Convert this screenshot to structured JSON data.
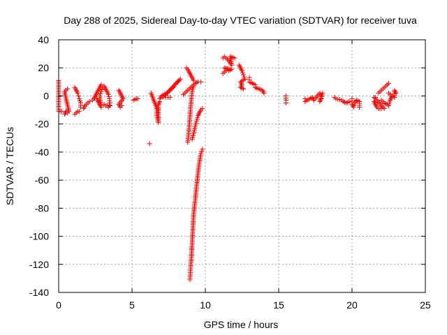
{
  "chart_data": {
    "type": "scatter",
    "title": "Day 288 of 2025, Sidereal Day-to-day VTEC variation (SDTVAR) for receiver tuva",
    "xlabel": "GPS time / hours",
    "ylabel": "SDTVAR / TECUs",
    "xlim": [
      0,
      25
    ],
    "ylim": [
      -140,
      40
    ],
    "xticks": [
      "0",
      "5",
      "10",
      "15",
      "20",
      "25"
    ],
    "yticks": [
      "40",
      "20",
      "0",
      "-20",
      "-40",
      "-60",
      "-80",
      "-100",
      "-120",
      "-140"
    ],
    "grid": true,
    "marker": "+",
    "series": [
      {
        "name": "SDTVAR",
        "color": "#ff0000",
        "segments": [
          [
            [
              0.0,
              11
            ],
            [
              0.0,
              3
            ],
            [
              0.0,
              -11
            ],
            [
              0.1,
              -11
            ],
            [
              0.2,
              -11
            ]
          ],
          [
            [
              0.4,
              -13
            ],
            [
              0.5,
              -11
            ],
            [
              0.6,
              -12
            ],
            [
              0.7,
              -11
            ],
            [
              0.4,
              3
            ],
            [
              0.5,
              4
            ],
            [
              0.6,
              5
            ]
          ],
          [
            [
              1.1,
              6
            ],
            [
              1.2,
              4
            ],
            [
              1.3,
              2
            ],
            [
              1.35,
              0
            ],
            [
              1.4,
              -2
            ],
            [
              1.5,
              -5
            ],
            [
              1.5,
              -8
            ]
          ],
          [
            [
              1.1,
              -13
            ],
            [
              1.2,
              -12
            ],
            [
              1.3,
              -11
            ],
            [
              1.4,
              -11
            ]
          ],
          [
            [
              1.7,
              -9
            ],
            [
              1.8,
              -7
            ],
            [
              1.9,
              -6
            ],
            [
              2.0,
              -5
            ],
            [
              2.1,
              -4
            ]
          ],
          [
            [
              2.3,
              -3
            ],
            [
              2.4,
              -2
            ],
            [
              2.5,
              0
            ],
            [
              2.6,
              2
            ],
            [
              2.7,
              4
            ],
            [
              2.8,
              6
            ],
            [
              2.9,
              8
            ]
          ],
          [
            [
              2.6,
              -2
            ],
            [
              2.7,
              -4
            ],
            [
              2.8,
              -6
            ],
            [
              2.9,
              -8
            ],
            [
              2.8,
              0
            ],
            [
              2.9,
              3
            ],
            [
              3.0,
              6
            ]
          ],
          [
            [
              3.1,
              7
            ],
            [
              3.2,
              5
            ],
            [
              3.3,
              3
            ],
            [
              3.4,
              1
            ],
            [
              3.45,
              -2
            ],
            [
              3.5,
              -5
            ],
            [
              3.4,
              -8
            ]
          ],
          [
            [
              3.1,
              -6
            ],
            [
              3.2,
              -7
            ],
            [
              3.3,
              -7
            ],
            [
              3.5,
              -7
            ]
          ],
          [
            [
              4.1,
              4
            ],
            [
              4.2,
              2
            ],
            [
              4.3,
              0
            ],
            [
              4.4,
              -2
            ],
            [
              4.1,
              -6
            ],
            [
              4.2,
              -8
            ],
            [
              4.3,
              -7
            ]
          ],
          [
            [
              5.1,
              -3
            ],
            [
              5.3,
              -2
            ],
            [
              5.4,
              -2
            ]
          ],
          [
            [
              6.2,
              -34
            ],
            [
              6.3,
              2
            ],
            [
              6.7,
              -9
            ],
            [
              6.7,
              -14
            ],
            [
              6.8,
              -19
            ],
            [
              6.8,
              -6
            ],
            [
              6.9,
              -4
            ]
          ],
          [
            [
              6.9,
              -2
            ],
            [
              7.0,
              0
            ],
            [
              7.2,
              1
            ],
            [
              7.4,
              2
            ],
            [
              7.6,
              4
            ],
            [
              7.8,
              6
            ],
            [
              8.0,
              9
            ],
            [
              8.2,
              11
            ],
            [
              8.3,
              12
            ],
            [
              7.1,
              -1
            ],
            [
              7.3,
              -1
            ],
            [
              7.6,
              -1
            ]
          ],
          [
            [
              8.5,
              1
            ],
            [
              8.7,
              3
            ],
            [
              8.9,
              5
            ],
            [
              9.1,
              7
            ],
            [
              9.3,
              9
            ],
            [
              9.5,
              10
            ],
            [
              9.7,
              10
            ]
          ],
          [
            [
              8.7,
              20
            ],
            [
              8.8,
              19
            ],
            [
              8.9,
              17
            ],
            [
              9.0,
              15
            ],
            [
              9.1,
              13
            ],
            [
              9.2,
              11
            ]
          ],
          [
            [
              8.8,
              -33
            ],
            [
              8.85,
              -28
            ],
            [
              8.9,
              -22
            ],
            [
              8.95,
              -15
            ],
            [
              9.0,
              -8
            ],
            [
              9.05,
              -2
            ],
            [
              9.1,
              3
            ],
            [
              9.2,
              7
            ]
          ],
          [
            [
              9.1,
              -31
            ],
            [
              9.2,
              -27
            ],
            [
              9.3,
              -22
            ],
            [
              9.4,
              -18
            ],
            [
              9.5,
              -14
            ],
            [
              9.6,
              -12
            ],
            [
              9.7,
              -10
            ],
            [
              9.8,
              -9
            ]
          ],
          [
            [
              8.95,
              -131
            ],
            [
              8.97,
              -127
            ],
            [
              9.0,
              -122
            ],
            [
              9.05,
              -115
            ],
            [
              9.1,
              -105
            ],
            [
              9.15,
              -95
            ],
            [
              9.2,
              -85
            ],
            [
              9.3,
              -75
            ],
            [
              9.4,
              -65
            ],
            [
              9.5,
              -55
            ],
            [
              9.6,
              -47
            ],
            [
              9.7,
              -41
            ],
            [
              9.8,
              -38
            ]
          ],
          [
            [
              11.2,
              27
            ],
            [
              11.3,
              28
            ],
            [
              11.4,
              27
            ],
            [
              11.6,
              25
            ],
            [
              11.8,
              22
            ],
            [
              11.7,
              28
            ],
            [
              12.0,
              27
            ]
          ],
          [
            [
              11.2,
              16
            ],
            [
              11.3,
              17
            ],
            [
              11.4,
              18
            ],
            [
              11.6,
              18
            ],
            [
              11.8,
              19
            ],
            [
              11.3,
              20
            ],
            [
              11.5,
              19
            ]
          ],
          [
            [
              12.3,
              22
            ],
            [
              12.4,
              20
            ],
            [
              12.5,
              18
            ],
            [
              12.6,
              15
            ],
            [
              12.7,
              12
            ],
            [
              12.4,
              10
            ],
            [
              12.5,
              8
            ],
            [
              12.4,
              6
            ],
            [
              12.6,
              5
            ]
          ],
          [
            [
              13.0,
              13
            ],
            [
              13.0,
              10
            ],
            [
              13.4,
              8
            ],
            [
              13.4,
              6
            ],
            [
              13.9,
              4
            ],
            [
              14.0,
              2
            ]
          ],
          [
            [
              15.5,
              0
            ],
            [
              15.5,
              -3
            ],
            [
              15.5,
              -5
            ]
          ],
          [
            [
              16.8,
              -2
            ],
            [
              16.8,
              -4
            ],
            [
              17.3,
              -1
            ],
            [
              17.4,
              -3
            ],
            [
              17.8,
              2
            ],
            [
              17.9,
              0
            ],
            [
              17.9,
              -2
            ],
            [
              17.8,
              -4
            ],
            [
              18.0,
              2
            ]
          ],
          [
            [
              18.8,
              -1
            ],
            [
              18.9,
              -2
            ],
            [
              19.3,
              -3
            ],
            [
              19.4,
              -4
            ],
            [
              19.6,
              -5
            ],
            [
              19.8,
              -4
            ]
          ],
          [
            [
              20.0,
              -2
            ],
            [
              20.0,
              -6
            ],
            [
              20.1,
              -8
            ],
            [
              20.2,
              -5
            ],
            [
              20.3,
              -3
            ],
            [
              20.5,
              -4
            ],
            [
              20.5,
              -8
            ]
          ],
          [
            [
              21.5,
              -4
            ],
            [
              21.6,
              -6
            ],
            [
              21.7,
              -8
            ],
            [
              21.8,
              -9
            ],
            [
              21.9,
              -9
            ],
            [
              22.0,
              -9
            ],
            [
              22.2,
              -9
            ],
            [
              21.5,
              -1
            ],
            [
              21.6,
              -1
            ]
          ],
          [
            [
              21.8,
              2
            ],
            [
              21.9,
              3
            ],
            [
              22.0,
              4
            ],
            [
              22.1,
              5
            ],
            [
              22.2,
              6
            ],
            [
              22.3,
              7
            ],
            [
              22.4,
              8
            ],
            [
              22.5,
              9
            ]
          ],
          [
            [
              22.0,
              -3
            ],
            [
              22.2,
              -5
            ],
            [
              22.4,
              -6
            ],
            [
              22.5,
              -7
            ],
            [
              22.6,
              -3
            ],
            [
              22.7,
              -1
            ]
          ],
          [
            [
              22.5,
              2
            ],
            [
              22.6,
              1
            ],
            [
              22.7,
              0
            ],
            [
              22.9,
              -1
            ],
            [
              22.9,
              4
            ],
            [
              23.0,
              2
            ]
          ]
        ]
      }
    ]
  }
}
